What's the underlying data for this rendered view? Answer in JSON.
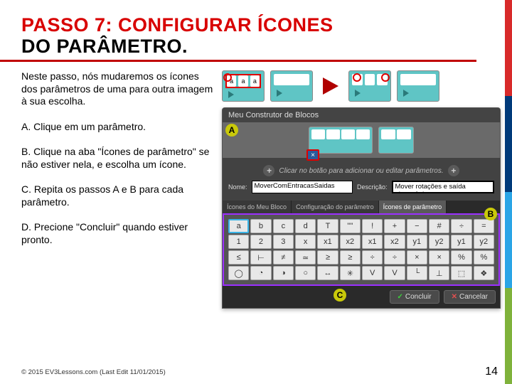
{
  "colors": {
    "title_red": "#d80000",
    "underline": "#c00000",
    "stripe": [
      "#d82a2a",
      "#003a7a",
      "#2aa5e6",
      "#7fb23b"
    ],
    "highlight_yellow": "#c9c90a",
    "purple_border": "#9b30ff",
    "arrow": "#b00000",
    "teal": "#5fc5c5"
  },
  "title_line1": "PASSO 7: CONFIGURAR ÍCONES",
  "title_line2": "DO PARÂMETRO.",
  "intro": "Neste passo, nós mudaremos os ícones dos parâmetros de uma para outra imagem à sua escolha.",
  "steps": {
    "a": "A.  Clique em um parâmetro.",
    "b": "B. Clique na aba \"Ícones de parâmetro\" se não estiver nela, e escolha um ícone.",
    "c": "C. Repita os passos A e B para cada parâmetro.",
    "d": "D. Precione \"Concluir\" quando estiver pronto."
  },
  "dialog": {
    "window_title": "Meu Construtor de Blocos",
    "hint": "Clicar no botão para adicionar ou editar parâmetros.",
    "name_label": "Nome:",
    "name_value": "MoverComEntracasSaidas",
    "desc_label": "Descrição:",
    "desc_value": "Mover rotações e saída ultrassônica.",
    "tabs": [
      "Ícones do Meu Bloco",
      "Configuração do parâmetro",
      "Ícones de parâmetro"
    ],
    "active_tab": 2,
    "buttons": {
      "ok": "Concluir",
      "cancel": "Cancelar"
    },
    "badges": {
      "a": "A",
      "b": "B",
      "c": "C"
    }
  },
  "icon_grid": {
    "rows": 4,
    "cols": 12,
    "selected": 0,
    "glyphs": [
      "a",
      "b",
      "c",
      "d",
      "T",
      "\"\"",
      "!",
      "+",
      "−",
      "#",
      "÷",
      "=",
      "1",
      "2",
      "3",
      "x",
      "x1",
      "x2",
      "x1",
      "x2",
      "y1",
      "y2",
      "y1",
      "y2",
      "≤",
      "⊢",
      "≠",
      "≃",
      "≥",
      "≥",
      "÷",
      "÷",
      "×",
      "×",
      "%",
      "%",
      "◯",
      "◔",
      "◑",
      "○",
      "↔",
      "✳",
      "V",
      "V",
      "└",
      "⊥",
      "⬚",
      "❖"
    ]
  },
  "block_chips": [
    "a",
    "a",
    "a"
  ],
  "footer": "© 2015 EV3Lessons.com (Last Edit 11/01/2015)",
  "page_number": "14"
}
